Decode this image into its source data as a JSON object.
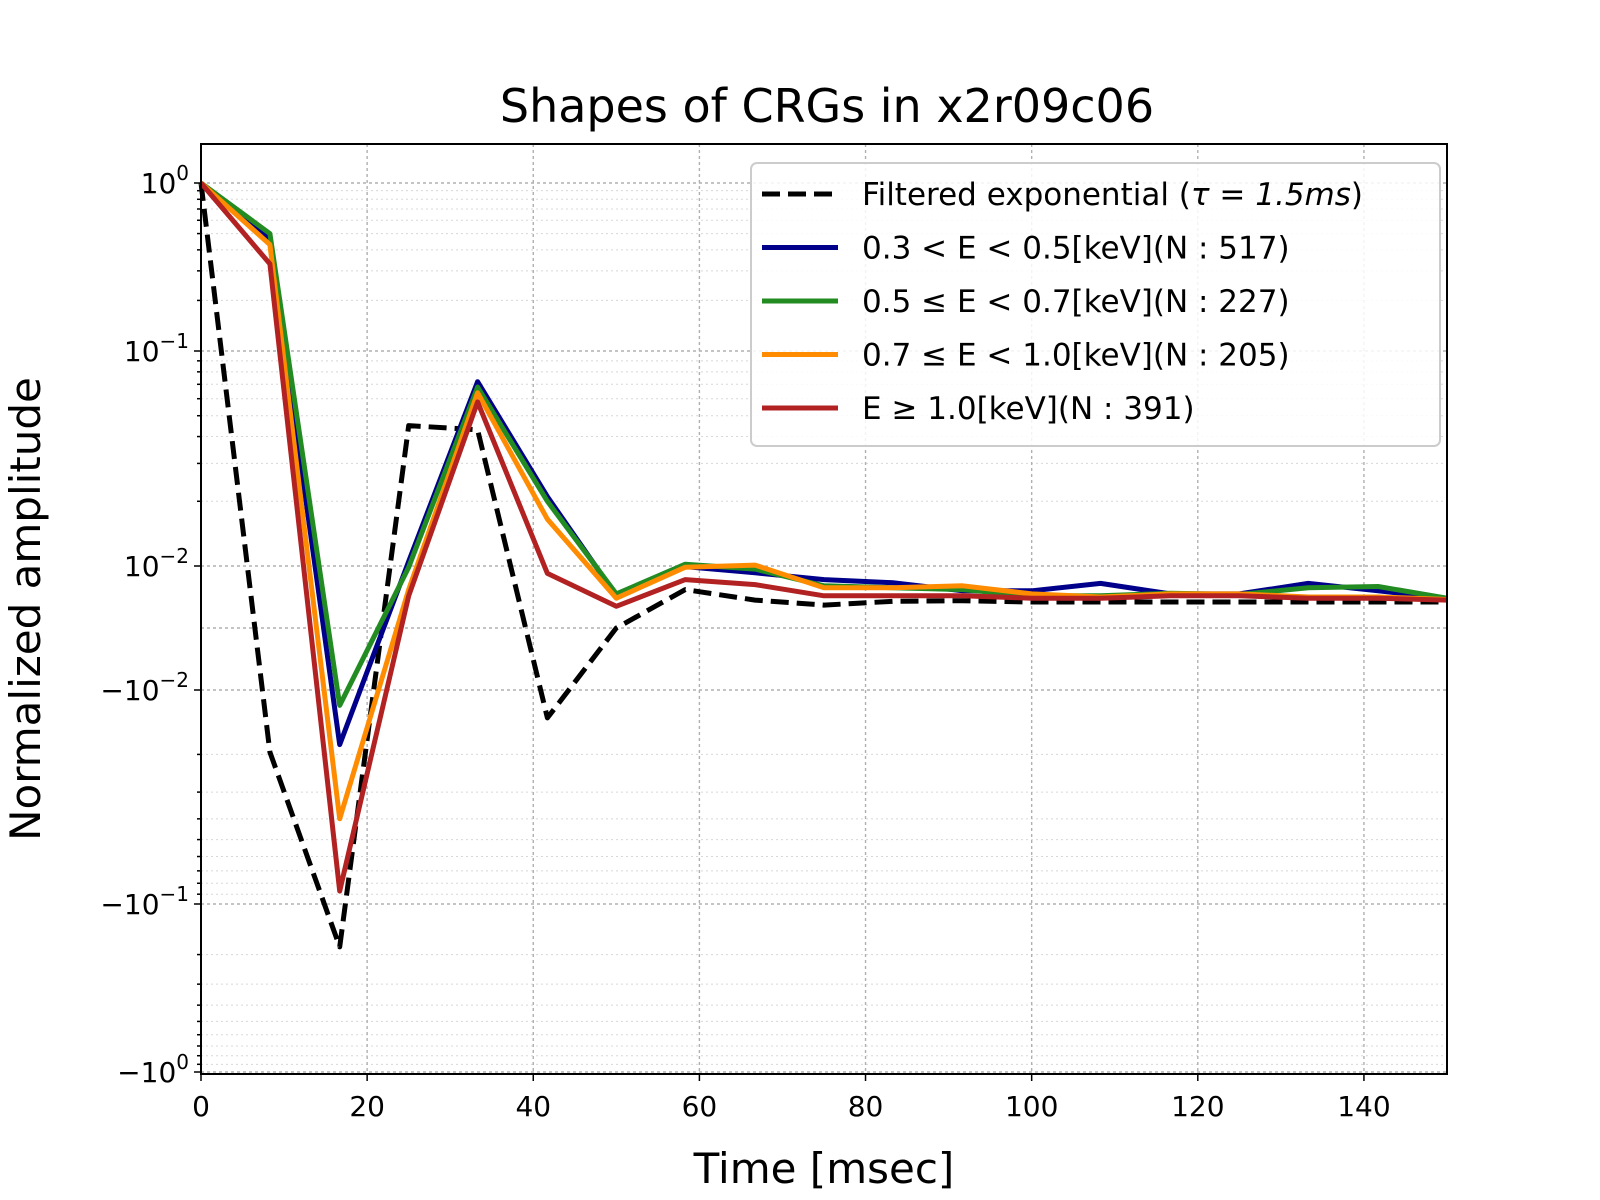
{
  "chart_data": {
    "type": "line",
    "title": "Shapes of CRGs in x2r09c06",
    "xlabel": "Time [msec]",
    "ylabel": "Normalized amplitude",
    "yscale": "symlog",
    "xlim": [
      0,
      150
    ],
    "grid": true,
    "legend_position": "top-right",
    "x_ticks": [
      0,
      20,
      40,
      60,
      80,
      100,
      120,
      140
    ],
    "y_ticks": [
      {
        "value": 1,
        "base": "10",
        "exp": "0"
      },
      {
        "value": 0.1,
        "base": "10",
        "exp": "−1"
      },
      {
        "value": 0.01,
        "base": "10",
        "exp": "−2"
      },
      {
        "value": -0.01,
        "base": "−10",
        "exp": "−2"
      },
      {
        "value": -0.1,
        "base": "−10",
        "exp": "−1"
      },
      {
        "value": -1,
        "base": "−10",
        "exp": "0"
      }
    ],
    "x": [
      0,
      8.3,
      16.7,
      25,
      33.3,
      41.7,
      50,
      58.3,
      66.7,
      75,
      83.3,
      91.7,
      100,
      108.3,
      116.7,
      125,
      133.3,
      141.7,
      150
    ],
    "series": [
      {
        "name": "Filtered exponential",
        "legend_prefix": "Filtered exponential (",
        "legend_math": "τ = 1.5ms",
        "legend_suffix": ")",
        "color": "#000000",
        "style": "dashed",
        "values": [
          1.0,
          -0.0195,
          -0.18,
          0.045,
          0.043,
          -0.0135,
          0.0,
          0.0062,
          0.0045,
          0.0037,
          0.0043,
          0.0044,
          0.0042,
          0.0042,
          0.0042,
          0.0042,
          0.0042,
          0.0042,
          0.0042
        ]
      },
      {
        "name": "0.3 < E < 0.5[keV](N : 517)",
        "legend_label": "0.3 < E < 0.5[keV](N : 517)",
        "color": "#00008b",
        "style": "solid",
        "values": [
          1.0,
          0.46,
          -0.018,
          0.0105,
          0.072,
          0.021,
          0.0052,
          0.0099,
          0.0089,
          0.0078,
          0.0073,
          0.006,
          0.006,
          0.0072,
          0.0055,
          0.0055,
          0.0072,
          0.006,
          0.0048
        ]
      },
      {
        "name": "0.5 ≤ E < 0.7[keV](N : 227)",
        "legend_label": "0.5 ≤ E < 0.7[keV](N : 227)",
        "color": "#228b22",
        "style": "solid",
        "values": [
          1.0,
          0.5,
          -0.0118,
          0.0098,
          0.068,
          0.02,
          0.0055,
          0.0102,
          0.0095,
          0.0068,
          0.0065,
          0.0062,
          0.0052,
          0.0052,
          0.0056,
          0.0054,
          0.0065,
          0.0067,
          0.0048
        ]
      },
      {
        "name": "0.7 ≤ E < 1.0[keV](N : 205)",
        "legend_label": "0.7 ≤ E < 1.0[keV](N : 205)",
        "color": "#ff8c00",
        "style": "solid",
        "values": [
          1.0,
          0.43,
          -0.04,
          0.0062,
          0.064,
          0.0165,
          0.0048,
          0.0098,
          0.0101,
          0.0065,
          0.0065,
          0.0068,
          0.0055,
          0.005,
          0.0055,
          0.0055,
          0.005,
          0.005,
          0.0046
        ]
      },
      {
        "name": "E ≥ 1.0[keV](N : 391)",
        "legend_label": "E ≥ 1.0[keV](N : 391)",
        "color": "#b22222",
        "style": "solid",
        "values": [
          1.0,
          0.33,
          -0.087,
          0.0052,
          0.058,
          0.0088,
          0.0035,
          0.0078,
          0.007,
          0.0052,
          0.0052,
          0.0052,
          0.0048,
          0.0048,
          0.0052,
          0.0052,
          0.0048,
          0.0048,
          0.0045
        ]
      }
    ]
  }
}
